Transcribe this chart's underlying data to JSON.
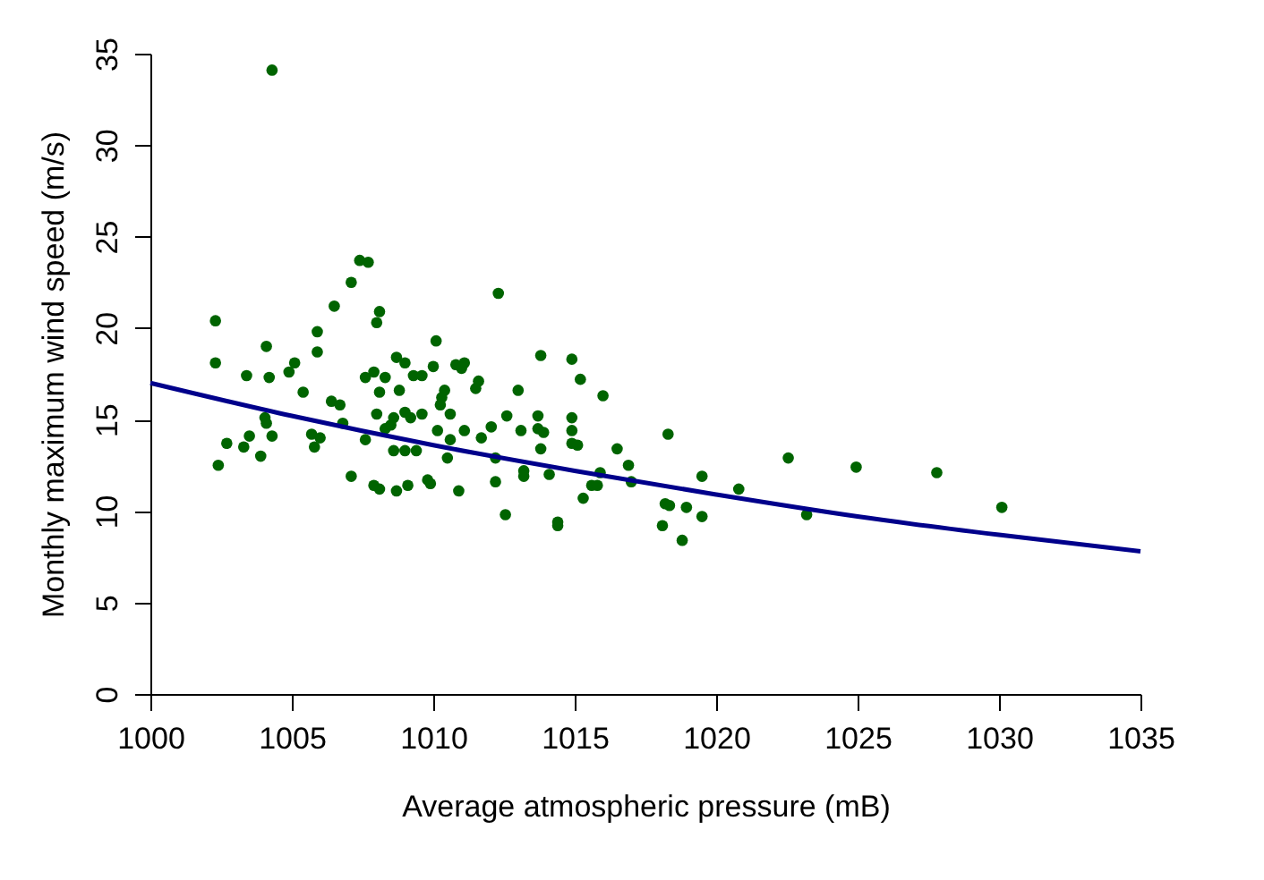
{
  "chart_data": {
    "type": "scatter",
    "xlabel": "Average atmospheric pressure (mB)",
    "ylabel": "Monthly maximum wind speed (m/s)",
    "xlim": [
      1000,
      1035
    ],
    "ylim": [
      0,
      35
    ],
    "xticks": [
      1000,
      1005,
      1010,
      1015,
      1020,
      1025,
      1030,
      1035
    ],
    "yticks": [
      0,
      5,
      10,
      15,
      20,
      25,
      30,
      35
    ],
    "grid": false,
    "series": [
      {
        "marker": "circle",
        "color": "#006400",
        "x": [
          1004.3,
          1002.3,
          1002.3,
          1002.4,
          1002.7,
          1003.3,
          1003.5,
          1003.4,
          1003.9,
          1004.1,
          1004.2,
          1004.05,
          1004.1,
          1004.3,
          1004.9,
          1005.1,
          1005.4,
          1005.9,
          1005.9,
          1005.7,
          1005.8,
          1006.0,
          1006.4,
          1006.7,
          1006.8,
          1006.5,
          1007.1,
          1007.4,
          1007.7,
          1007.1,
          1007.6,
          1008.1,
          1008.0,
          1007.6,
          1007.9,
          1008.3,
          1008.1,
          1008.7,
          1009.0,
          1009.3,
          1008.8,
          1008.0,
          1008.6,
          1008.3,
          1008.5,
          1009.0,
          1009.2,
          1008.6,
          1009.0,
          1009.4,
          1007.9,
          1008.1,
          1008.7,
          1009.1,
          1012.3,
          1010.1,
          1010.0,
          1009.6,
          1010.8,
          1011.1,
          1011.0,
          1011.6,
          1011.5,
          1010.4,
          1010.3,
          1010.25,
          1013.8,
          1014.9,
          1015.2,
          1016.0,
          1013.0,
          1009.6,
          1010.6,
          1012.6,
          1010.15,
          1011.1,
          1012.05,
          1011.7,
          1010.6,
          1013.1,
          1013.7,
          1013.7,
          1013.9,
          1013.8,
          1014.9,
          1014.9,
          1014.9,
          1015.1,
          1016.5,
          1018.3,
          1010.5,
          1012.2,
          1013.2,
          1013.2,
          1014.1,
          1015.9,
          1015.6,
          1015.8,
          1016.9,
          1017.0,
          1015.3,
          1009.8,
          1009.9,
          1010.9,
          1012.2,
          1012.55,
          1014.4,
          1014.4,
          1018.2,
          1018.35,
          1018.95,
          1018.1,
          1018.8,
          1019.5,
          1019.5,
          1020.8,
          1022.55,
          1023.2,
          1024.95,
          1027.8,
          1030.1
        ],
        "values": [
          34.1,
          20.4,
          18.1,
          12.5,
          13.7,
          13.5,
          14.1,
          17.4,
          13.0,
          19.0,
          17.3,
          15.1,
          14.8,
          14.1,
          17.6,
          18.1,
          16.5,
          19.8,
          18.7,
          14.2,
          13.5,
          14.0,
          16.0,
          15.8,
          14.8,
          21.2,
          22.5,
          23.7,
          23.6,
          11.9,
          13.9,
          20.9,
          20.3,
          17.3,
          17.6,
          17.3,
          16.5,
          18.4,
          18.1,
          17.4,
          16.6,
          15.3,
          15.1,
          14.5,
          14.7,
          15.4,
          15.1,
          13.3,
          13.3,
          13.3,
          11.4,
          11.2,
          11.1,
          11.4,
          21.9,
          19.3,
          17.9,
          17.4,
          18.0,
          18.1,
          17.8,
          17.1,
          16.7,
          16.6,
          16.2,
          15.8,
          18.5,
          18.3,
          17.2,
          16.3,
          16.6,
          15.3,
          15.3,
          15.2,
          14.4,
          14.4,
          14.6,
          14.0,
          13.9,
          14.4,
          15.2,
          14.5,
          14.3,
          13.4,
          15.1,
          14.4,
          13.7,
          13.6,
          13.4,
          14.2,
          12.9,
          12.9,
          12.2,
          11.9,
          12.0,
          12.1,
          11.4,
          11.4,
          12.5,
          11.6,
          10.7,
          11.7,
          11.5,
          11.1,
          11.6,
          9.8,
          9.4,
          9.2,
          10.4,
          10.3,
          10.2,
          9.2,
          8.4,
          11.9,
          9.7,
          11.2,
          12.9,
          9.8,
          12.4,
          12.1,
          10.2
        ]
      },
      {
        "type": "line",
        "marker": "none",
        "color": "#00008b",
        "x": [
          1000,
          1005,
          1010,
          1015,
          1020,
          1025,
          1030,
          1035
        ],
        "values": [
          17.0,
          15.2,
          13.6,
          12.2,
          10.9,
          9.7,
          8.7,
          7.8
        ]
      }
    ]
  }
}
